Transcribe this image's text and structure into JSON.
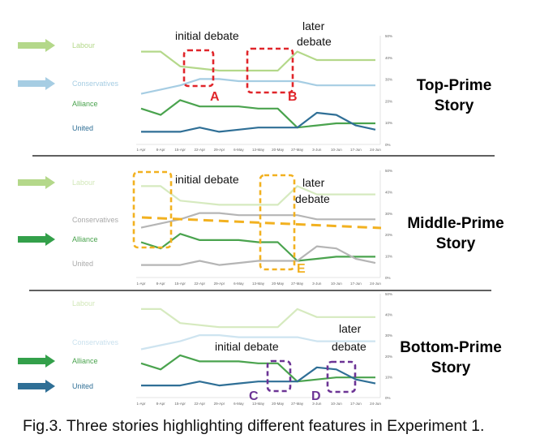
{
  "caption": "Fig.3. Three stories highlighting different features in Experiment 1.",
  "x_ticks": [
    "1-Apr",
    "8-Apr",
    "15-Apr",
    "22-Apr",
    "29-Apr",
    "6-May",
    "13-May",
    "20-May",
    "27-May",
    "3-Jun",
    "10-Jun",
    "17-Jun",
    "24-Jun"
  ],
  "y_ticks": [
    "50%",
    "40%",
    "30%",
    "20%",
    "10%",
    "0%"
  ],
  "annotations": {
    "initial_debate": "initial debate",
    "later": "later",
    "debate": "debate",
    "A": "A",
    "B": "B",
    "C": "C",
    "D": "D",
    "E": "E"
  },
  "colors": {
    "labour": "#b4d88a",
    "conservatives": "#a6cde3",
    "alliance": "#4aa34e",
    "united": "#2f6f96",
    "grey": "#b5b5b5",
    "red": "#e0252a",
    "orange": "#f2b120",
    "purple": "#6c3495"
  },
  "panels": [
    {
      "story_line1": "Top-Prime",
      "story_line2": "Story",
      "labels": {
        "labour": "Labour",
        "conservatives": "Conservatives",
        "alliance": "Alliance",
        "united": "United"
      },
      "arrows": [
        "labour",
        "conservatives"
      ]
    },
    {
      "story_line1": "Middle-Prime",
      "story_line2": "Story",
      "labels": {
        "labour": "Labour",
        "conservatives": "Conservatives",
        "alliance": "Alliance",
        "united": "United"
      },
      "arrows": [
        "labour",
        "alliance"
      ]
    },
    {
      "story_line1": "Bottom-Prime",
      "story_line2": "Story",
      "labels": {
        "labour": "Labour",
        "conservatives": "Conservatives",
        "alliance": "Alliance",
        "united": "United"
      },
      "arrows": [
        "alliance",
        "united"
      ]
    }
  ],
  "chart_data": [
    {
      "type": "line",
      "x": [
        "1-Apr",
        "8-Apr",
        "15-Apr",
        "22-Apr",
        "29-Apr",
        "6-May",
        "13-May",
        "20-May",
        "27-May",
        "3-Jun",
        "10-Jun",
        "17-Jun",
        "24-Jun"
      ],
      "ylim": [
        0,
        50
      ],
      "series": [
        {
          "name": "Labour",
          "values": [
            44,
            44,
            37,
            36,
            35,
            35,
            35,
            35,
            44,
            40,
            40,
            40,
            40
          ]
        },
        {
          "name": "Conservatives",
          "values": [
            24,
            26,
            28,
            31,
            31,
            30,
            30,
            30,
            30,
            28,
            28,
            28,
            28
          ]
        },
        {
          "name": "Alliance",
          "values": [
            17,
            14,
            21,
            18,
            18,
            18,
            17,
            17,
            8,
            9,
            10,
            10,
            10
          ]
        },
        {
          "name": "United",
          "values": [
            6,
            6,
            6,
            8,
            6,
            7,
            8,
            8,
            8,
            15,
            14,
            9,
            7
          ]
        }
      ]
    },
    {
      "type": "line",
      "x": [
        "1-Apr",
        "8-Apr",
        "15-Apr",
        "22-Apr",
        "29-Apr",
        "6-May",
        "13-May",
        "20-May",
        "27-May",
        "3-Jun",
        "10-Jun",
        "17-Jun",
        "24-Jun"
      ],
      "ylim": [
        0,
        50
      ],
      "series": [
        {
          "name": "Labour",
          "values": [
            44,
            44,
            37,
            36,
            35,
            35,
            35,
            35,
            44,
            40,
            40,
            40,
            40
          ]
        },
        {
          "name": "Conservatives",
          "values": [
            24,
            26,
            28,
            31,
            31,
            30,
            30,
            30,
            30,
            28,
            28,
            28,
            28
          ]
        },
        {
          "name": "Alliance",
          "values": [
            17,
            14,
            21,
            18,
            18,
            18,
            17,
            17,
            8,
            9,
            10,
            10,
            10
          ]
        },
        {
          "name": "United",
          "values": [
            6,
            6,
            6,
            8,
            6,
            7,
            8,
            8,
            8,
            15,
            14,
            9,
            7
          ]
        }
      ]
    },
    {
      "type": "line",
      "x": [
        "1-Apr",
        "8-Apr",
        "15-Apr",
        "22-Apr",
        "29-Apr",
        "6-May",
        "13-May",
        "20-May",
        "27-May",
        "3-Jun",
        "10-Jun",
        "17-Jun",
        "24-Jun"
      ],
      "ylim": [
        0,
        50
      ],
      "series": [
        {
          "name": "Labour",
          "values": [
            44,
            44,
            37,
            36,
            35,
            35,
            35,
            35,
            44,
            40,
            40,
            40,
            40
          ]
        },
        {
          "name": "Conservatives",
          "values": [
            24,
            26,
            28,
            31,
            31,
            30,
            30,
            30,
            30,
            28,
            28,
            28,
            28
          ]
        },
        {
          "name": "Alliance",
          "values": [
            17,
            14,
            21,
            18,
            18,
            18,
            17,
            17,
            8,
            9,
            10,
            10,
            10
          ]
        },
        {
          "name": "United",
          "values": [
            6,
            6,
            6,
            8,
            6,
            7,
            8,
            8,
            8,
            15,
            14,
            9,
            7
          ]
        }
      ]
    }
  ]
}
